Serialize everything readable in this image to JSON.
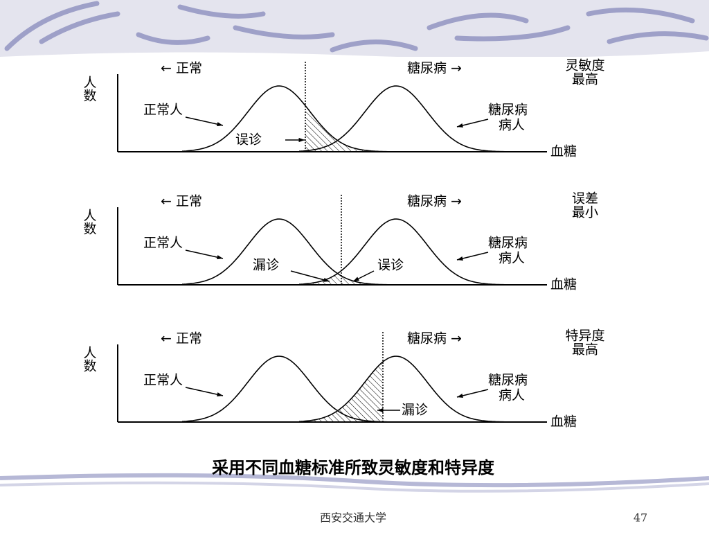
{
  "panels": [
    {
      "left_label": "← 正常",
      "right_label": "糖尿病 →",
      "criterion": [
        "灵敏度",
        "最高"
      ],
      "y_label": "人数",
      "x_label": "血糖",
      "normal_label": "正常人",
      "diabetic_label": [
        "糖尿病",
        "病人"
      ],
      "annotations": [
        "误诊"
      ]
    },
    {
      "left_label": "← 正常",
      "right_label": "糖尿病 →",
      "criterion": [
        "误差",
        "最小"
      ],
      "y_label": "人数",
      "x_label": "血糖",
      "normal_label": "正常人",
      "diabetic_label": [
        "糖尿病",
        "病人"
      ],
      "annotations": [
        "漏诊",
        "误诊"
      ]
    },
    {
      "left_label": "← 正常",
      "right_label": "糖尿病 →",
      "criterion": [
        "特异度",
        "最高"
      ],
      "y_label": "人数",
      "x_label": "血糖",
      "normal_label": "正常人",
      "diabetic_label": [
        "糖尿病",
        "病人"
      ],
      "annotations": [
        "漏诊"
      ]
    }
  ],
  "caption": "采用不同血糖标准所致灵敏度和特异度",
  "footer": {
    "institution": "西安交通大学",
    "page_number": "47"
  }
}
